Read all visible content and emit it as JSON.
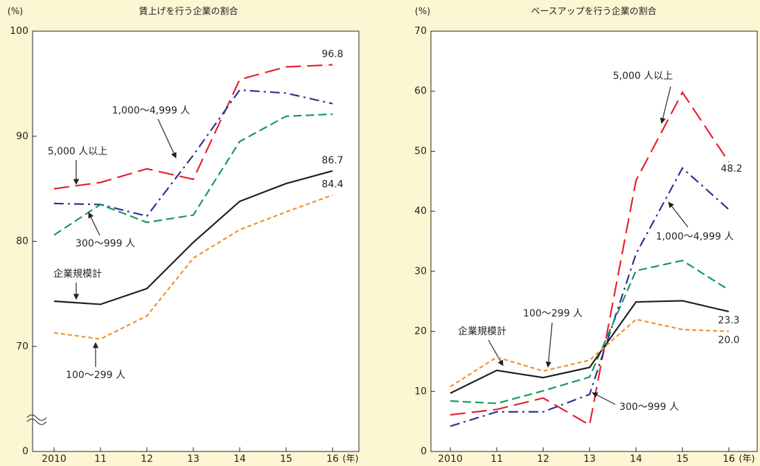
{
  "chart_data": [
    {
      "type": "line",
      "title": "賃上げを行う企業の割合",
      "y_label": "(%)",
      "x_label": "(年)",
      "categories": [
        "2010",
        "11",
        "12",
        "13",
        "14",
        "15",
        "16"
      ],
      "ylim": [
        0,
        100
      ],
      "yticks": [
        0,
        70,
        80,
        90,
        100
      ],
      "axis_break": true,
      "series": [
        {
          "name": "5,000 人以上",
          "color": "#e3202a",
          "dash": "22,9",
          "values": [
            85.0,
            85.6,
            86.9,
            85.9,
            95.4,
            96.6,
            96.8
          ],
          "value_labels": [
            null,
            null,
            null,
            null,
            null,
            null,
            "96.8"
          ]
        },
        {
          "name": "1,000～4,999 人",
          "color": "#2d2f8f",
          "dash": "14,6,3,6",
          "values": [
            83.6,
            83.5,
            82.4,
            88.2,
            94.4,
            94.1,
            93.1
          ]
        },
        {
          "name": "300～999 人",
          "color": "#14975a",
          "dash": "12,6",
          "values": [
            80.6,
            83.5,
            81.8,
            82.5,
            89.5,
            91.9,
            92.1
          ]
        },
        {
          "name": "企業規模計",
          "color": "#1e1e1e",
          "dash": "none",
          "values": [
            74.3,
            74.0,
            75.5,
            79.9,
            83.8,
            85.5,
            86.7
          ],
          "value_labels": [
            null,
            null,
            null,
            null,
            null,
            null,
            "86.7"
          ]
        },
        {
          "name": "100～299 人",
          "color": "#f0922b",
          "dash": "6,4",
          "values": [
            71.3,
            70.7,
            72.9,
            78.4,
            81.1,
            82.8,
            84.4
          ],
          "value_labels": [
            null,
            null,
            null,
            null,
            null,
            null,
            "84.4"
          ]
        }
      ]
    },
    {
      "type": "line",
      "title": "ベースアップを行う企業の割合",
      "y_label": "(%)",
      "x_label": "(年)",
      "categories": [
        "2010",
        "11",
        "12",
        "13",
        "14",
        "15",
        "16"
      ],
      "ylim": [
        0,
        70
      ],
      "yticks": [
        0,
        10,
        20,
        30,
        40,
        50,
        60,
        70
      ],
      "axis_break": false,
      "series": [
        {
          "name": "5,000 人以上",
          "color": "#e3202a",
          "dash": "22,9",
          "values": [
            6.1,
            7.0,
            8.9,
            4.4,
            45.1,
            59.8,
            48.2
          ],
          "value_labels": [
            null,
            null,
            null,
            null,
            null,
            null,
            "48.2"
          ]
        },
        {
          "name": "1,000～4,999 人",
          "color": "#2d2f8f",
          "dash": "14,6,3,6",
          "values": [
            4.2,
            6.6,
            6.6,
            9.5,
            32.9,
            47.2,
            40.3
          ]
        },
        {
          "name": "300～999 人",
          "color": "#14975a",
          "dash": "12,6",
          "values": [
            8.4,
            8.0,
            10.1,
            12.4,
            30.1,
            31.8,
            26.9
          ]
        },
        {
          "name": "企業規模計",
          "color": "#1e1e1e",
          "dash": "none",
          "values": [
            9.7,
            13.5,
            12.3,
            14.0,
            24.9,
            25.1,
            23.3
          ],
          "value_labels": [
            null,
            null,
            null,
            null,
            null,
            null,
            "23.3"
          ]
        },
        {
          "name": "100～299 人",
          "color": "#f0922b",
          "dash": "6,4",
          "values": [
            10.8,
            15.7,
            13.4,
            15.2,
            22.0,
            20.3,
            20.0
          ],
          "value_labels": [
            null,
            null,
            null,
            null,
            null,
            null,
            "20.0"
          ]
        }
      ]
    }
  ]
}
